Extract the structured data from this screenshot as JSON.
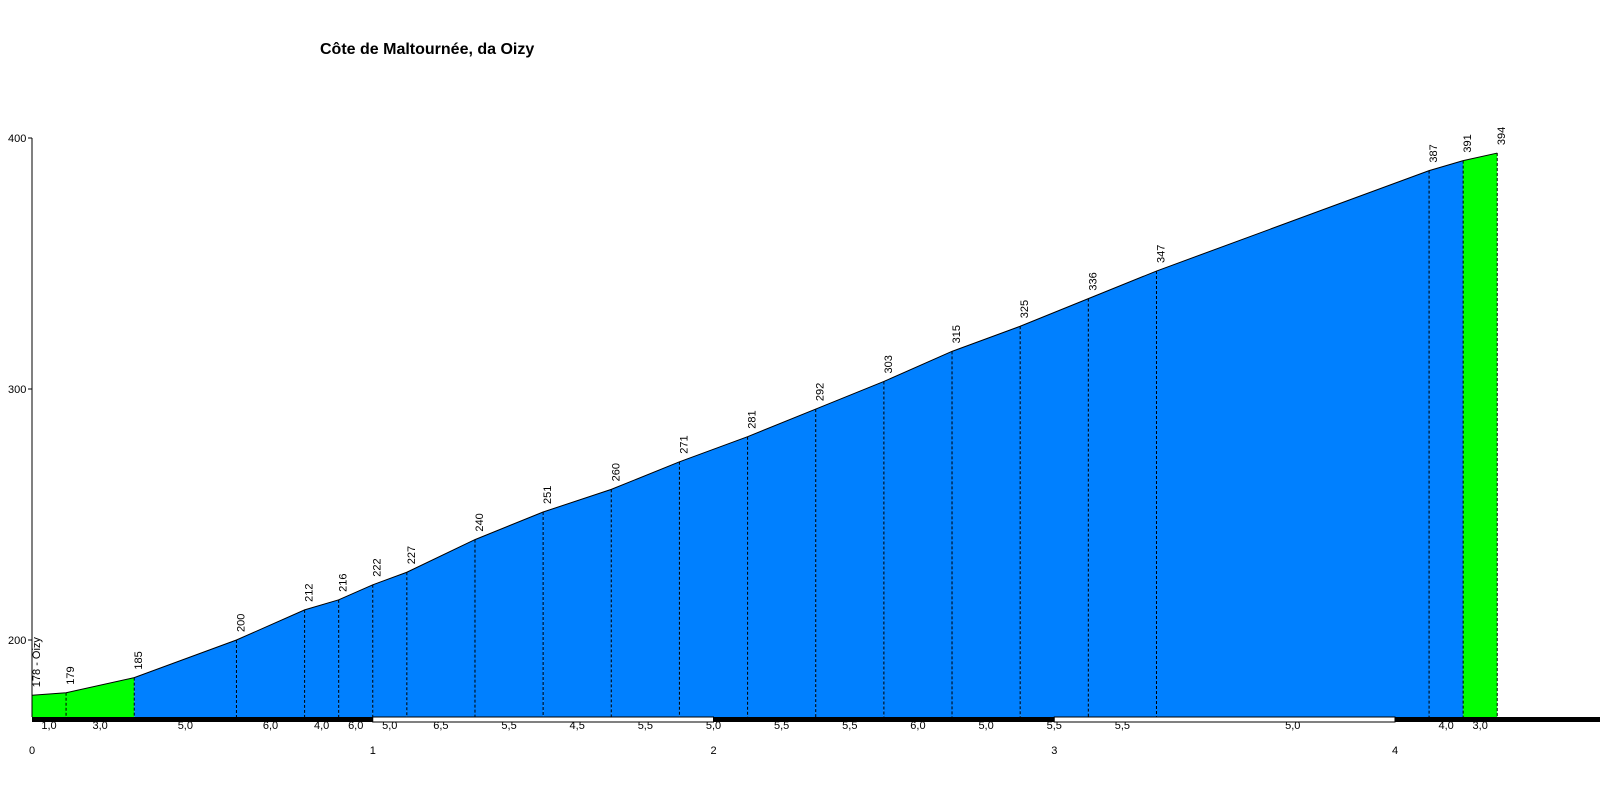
{
  "chart_data": {
    "type": "area",
    "title": "Côte de Maltournée, da Oizy",
    "start_label": "178 - Oizy",
    "xlabel": "",
    "ylabel": "",
    "xlim": [
      0,
      4.3
    ],
    "ylim": [
      170,
      400
    ],
    "x_ticks": [
      0,
      1,
      2,
      3,
      4
    ],
    "y_ticks": [
      200,
      300,
      400
    ],
    "grid": false,
    "colors": {
      "climb": "#0080FF",
      "flat": "#00FF00",
      "line": "#000000"
    },
    "points": [
      {
        "x": 0.0,
        "y": 178,
        "label": ""
      },
      {
        "x": 0.1,
        "y": 179,
        "label": "179"
      },
      {
        "x": 0.3,
        "y": 185,
        "label": "185"
      },
      {
        "x": 0.6,
        "y": 200,
        "label": "200"
      },
      {
        "x": 0.8,
        "y": 212,
        "label": "212"
      },
      {
        "x": 0.9,
        "y": 216,
        "label": "216"
      },
      {
        "x": 1.0,
        "y": 222,
        "label": "222"
      },
      {
        "x": 1.1,
        "y": 227,
        "label": "227"
      },
      {
        "x": 1.3,
        "y": 240,
        "label": "240"
      },
      {
        "x": 1.5,
        "y": 251,
        "label": "251"
      },
      {
        "x": 1.7,
        "y": 260,
        "label": "260"
      },
      {
        "x": 1.9,
        "y": 271,
        "label": "271"
      },
      {
        "x": 2.1,
        "y": 281,
        "label": "281"
      },
      {
        "x": 2.3,
        "y": 292,
        "label": "292"
      },
      {
        "x": 2.5,
        "y": 303,
        "label": "303"
      },
      {
        "x": 2.7,
        "y": 315,
        "label": "315"
      },
      {
        "x": 2.9,
        "y": 325,
        "label": "325"
      },
      {
        "x": 3.1,
        "y": 336,
        "label": "336"
      },
      {
        "x": 3.3,
        "y": 347,
        "label": "347"
      },
      {
        "x": 4.1,
        "y": 387,
        "label": "387"
      },
      {
        "x": 4.2,
        "y": 391,
        "label": "391"
      },
      {
        "x": 4.3,
        "y": 394,
        "label": "394"
      }
    ],
    "segments": [
      {
        "from": 0.0,
        "to": 0.1,
        "gradient": "1,0",
        "color": "#00FF00"
      },
      {
        "from": 0.1,
        "to": 0.3,
        "gradient": "3,0",
        "color": "#00FF00"
      },
      {
        "from": 0.3,
        "to": 0.6,
        "gradient": "5,0",
        "color": "#0080FF"
      },
      {
        "from": 0.6,
        "to": 0.8,
        "gradient": "6,0",
        "color": "#0080FF"
      },
      {
        "from": 0.8,
        "to": 0.9,
        "gradient": "4,0",
        "color": "#0080FF"
      },
      {
        "from": 0.9,
        "to": 1.0,
        "gradient": "6,0",
        "color": "#0080FF"
      },
      {
        "from": 1.0,
        "to": 1.1,
        "gradient": "5,0",
        "color": "#0080FF"
      },
      {
        "from": 1.1,
        "to": 1.3,
        "gradient": "6,5",
        "color": "#0080FF"
      },
      {
        "from": 1.3,
        "to": 1.5,
        "gradient": "5,5",
        "color": "#0080FF"
      },
      {
        "from": 1.5,
        "to": 1.7,
        "gradient": "4,5",
        "color": "#0080FF"
      },
      {
        "from": 1.7,
        "to": 1.9,
        "gradient": "5,5",
        "color": "#0080FF"
      },
      {
        "from": 1.9,
        "to": 2.1,
        "gradient": "5,0",
        "color": "#0080FF"
      },
      {
        "from": 2.1,
        "to": 2.3,
        "gradient": "5,5",
        "color": "#0080FF"
      },
      {
        "from": 2.3,
        "to": 2.5,
        "gradient": "5,5",
        "color": "#0080FF"
      },
      {
        "from": 2.5,
        "to": 2.7,
        "gradient": "6,0",
        "color": "#0080FF"
      },
      {
        "from": 2.7,
        "to": 2.9,
        "gradient": "5,0",
        "color": "#0080FF"
      },
      {
        "from": 2.9,
        "to": 3.1,
        "gradient": "5,5",
        "color": "#0080FF"
      },
      {
        "from": 3.1,
        "to": 3.3,
        "gradient": "5,5",
        "color": "#0080FF"
      },
      {
        "from": 3.3,
        "to": 4.1,
        "gradient": "5,0",
        "color": "#0080FF"
      },
      {
        "from": 4.1,
        "to": 4.2,
        "gradient": "4,0",
        "color": "#0080FF"
      },
      {
        "from": 4.2,
        "to": 4.3,
        "gradient": "3,0",
        "color": "#00FF00"
      }
    ]
  }
}
